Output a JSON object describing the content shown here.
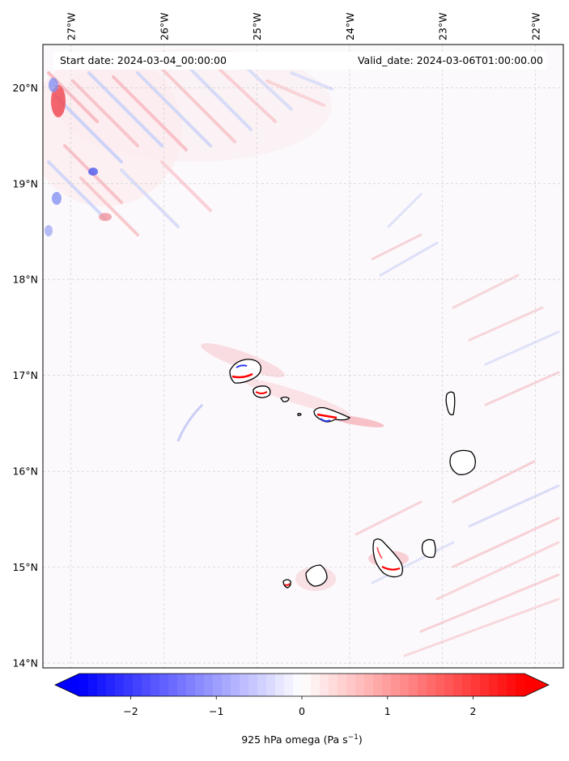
{
  "header": {
    "start_date": "Start date: 2024-03-04_00:00:00",
    "valid_date": "Valid_date: 2024-03-06T01:00:00.00"
  },
  "map": {
    "lon_range": [
      -27.3,
      -21.7
    ],
    "lat_range": [
      13.95,
      20.45
    ],
    "lon_ticks": [
      {
        "value": -27,
        "label": "27°W"
      },
      {
        "value": -26,
        "label": "26°W"
      },
      {
        "value": -25,
        "label": "25°W"
      },
      {
        "value": -24,
        "label": "24°W"
      },
      {
        "value": -23,
        "label": "23°W"
      },
      {
        "value": -22,
        "label": "22°W"
      }
    ],
    "lat_ticks": [
      {
        "value": 14,
        "label": "14°N"
      },
      {
        "value": 15,
        "label": "15°N"
      },
      {
        "value": 16,
        "label": "16°N"
      },
      {
        "value": 17,
        "label": "17°N"
      },
      {
        "value": 18,
        "label": "18°N"
      },
      {
        "value": 19,
        "label": "19°N"
      },
      {
        "value": 20,
        "label": "20°N"
      }
    ],
    "gridlines": true
  },
  "colorbar": {
    "label": "925 hPa omega (Pa s",
    "label_sup": "−1",
    "label_close": ")",
    "vmin": -2.6,
    "vmax": 2.6,
    "extend": "both",
    "ticks": [
      {
        "value": -2,
        "label": "−2"
      },
      {
        "value": -1,
        "label": "−1"
      },
      {
        "value": 0,
        "label": "0"
      },
      {
        "value": 1,
        "label": "1"
      },
      {
        "value": 2,
        "label": "2"
      }
    ],
    "colors": {
      "low": "#0000ff",
      "mid": "#ffffff",
      "high": "#ff0000"
    }
  },
  "colors": {
    "background_wash": "#fbf9fc",
    "coast": "#000000",
    "grid": "#c8c8c8"
  }
}
